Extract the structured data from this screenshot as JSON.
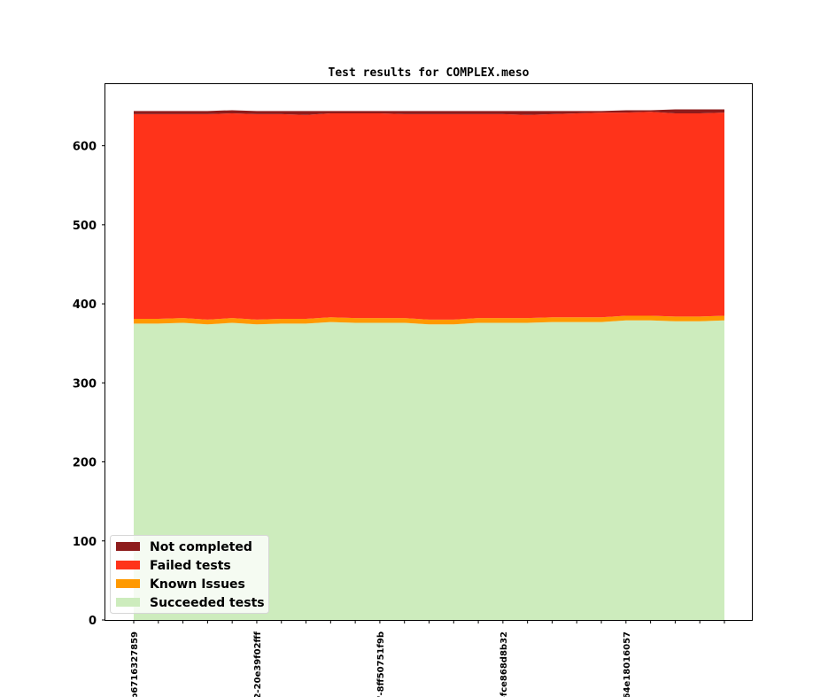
{
  "chart_data": {
    "type": "area",
    "stacked": true,
    "title": "Test results for COMPLEX.meso",
    "xlabel": "",
    "ylabel": "",
    "ylim": [
      0,
      678
    ],
    "yticks": [
      0,
      100,
      200,
      300,
      400,
      500,
      600
    ],
    "x_tick_labels": [
      {
        "index": 0,
        "label": "b6716327859"
      },
      {
        "index": 5,
        "label": "2-20e39f02fff"
      },
      {
        "index": 10,
        "label": "'-8ff50751f9b"
      },
      {
        "index": 15,
        "label": "-fce868d8b32"
      },
      {
        "index": 20,
        "label": "64e18016057"
      }
    ],
    "x_minor_ticks": 25,
    "legend_position": "lower-left",
    "series": [
      {
        "name": "Succeeded tests",
        "color": "#cdecbd",
        "values": [
          375,
          375,
          376,
          374,
          376,
          374,
          375,
          375,
          377,
          376,
          376,
          376,
          374,
          374,
          376,
          376,
          376,
          377,
          377,
          377,
          379,
          379,
          378,
          378,
          379
        ]
      },
      {
        "name": "Known Issues",
        "color": "#ff9900",
        "values": [
          6,
          6,
          6,
          6,
          6,
          6,
          6,
          6,
          6,
          6,
          6,
          6,
          6,
          6,
          6,
          6,
          6,
          6,
          6,
          6,
          6,
          6,
          6,
          6,
          6
        ]
      },
      {
        "name": "Failed tests",
        "color": "#ff331a",
        "values": [
          259,
          259,
          258,
          260,
          259,
          260,
          259,
          258,
          258,
          259,
          259,
          258,
          260,
          260,
          258,
          258,
          257,
          257,
          258,
          259,
          257,
          258,
          257,
          257,
          257
        ]
      },
      {
        "name": "Not completed",
        "color": "#8e1c1c",
        "values": [
          4,
          4,
          4,
          4,
          4,
          4,
          4,
          5,
          3,
          3,
          3,
          4,
          4,
          4,
          4,
          4,
          5,
          4,
          3,
          2,
          3,
          2,
          5,
          5,
          4
        ]
      }
    ]
  }
}
